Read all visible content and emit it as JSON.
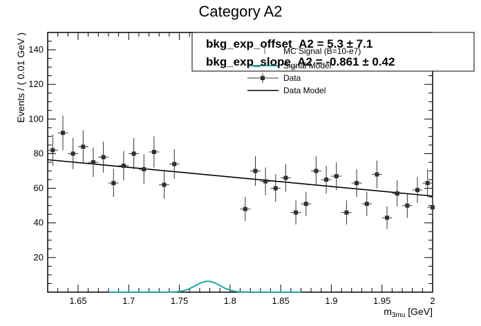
{
  "chart_data": {
    "type": "scatter",
    "title": "Category A2",
    "xlabel": "m",
    "xlabel_sub": "3mu",
    "xlabel_unit": " [GeV]",
    "ylabel": "Events / ( 0.01 GeV )",
    "xlim": [
      1.62,
      2.0
    ],
    "ylim": [
      0,
      150
    ],
    "x_ticks": [
      "1.65",
      "1.7",
      "1.75",
      "1.8",
      "1.85",
      "1.9",
      "1.95",
      "2"
    ],
    "y_ticks": [
      "20",
      "40",
      "60",
      "80",
      "100",
      "120",
      "140"
    ],
    "legend": {
      "placement": "top-right",
      "entries": [
        "MC Signal (B=10-e7)",
        "Signal Model",
        "Data",
        "Data Model"
      ]
    },
    "fit_results": [
      {
        "name": "bkg_exp_offset_A2",
        "text": "bkg_exp_offset_A2 =  5.3 ± 7.1"
      },
      {
        "name": "bkg_exp_slope_A2",
        "text": "bkg_exp_slope_A2 = -0.861 ± 0.42"
      }
    ],
    "bin_half_width": 0.005,
    "series": [
      {
        "name": "Data",
        "points": [
          {
            "x": 1.625,
            "y": 82,
            "err": 9
          },
          {
            "x": 1.635,
            "y": 92,
            "err": 10
          },
          {
            "x": 1.645,
            "y": 80,
            "err": 9
          },
          {
            "x": 1.655,
            "y": 84,
            "err": 9.5
          },
          {
            "x": 1.665,
            "y": 75,
            "err": 8.5
          },
          {
            "x": 1.675,
            "y": 78,
            "err": 9
          },
          {
            "x": 1.685,
            "y": 63,
            "err": 8
          },
          {
            "x": 1.695,
            "y": 73,
            "err": 8.5
          },
          {
            "x": 1.705,
            "y": 80,
            "err": 9
          },
          {
            "x": 1.715,
            "y": 71,
            "err": 8.5
          },
          {
            "x": 1.725,
            "y": 81,
            "err": 9
          },
          {
            "x": 1.735,
            "y": 62,
            "err": 8
          },
          {
            "x": 1.745,
            "y": 74,
            "err": 8.5
          },
          {
            "x": 1.815,
            "y": 48,
            "err": 7
          },
          {
            "x": 1.825,
            "y": 70,
            "err": 8.5
          },
          {
            "x": 1.835,
            "y": 64,
            "err": 8
          },
          {
            "x": 1.845,
            "y": 60,
            "err": 8
          },
          {
            "x": 1.855,
            "y": 66,
            "err": 8
          },
          {
            "x": 1.865,
            "y": 46,
            "err": 7
          },
          {
            "x": 1.875,
            "y": 51,
            "err": 7
          },
          {
            "x": 1.885,
            "y": 70,
            "err": 8.5
          },
          {
            "x": 1.895,
            "y": 65,
            "err": 8
          },
          {
            "x": 1.905,
            "y": 67,
            "err": 8
          },
          {
            "x": 1.915,
            "y": 46,
            "err": 7
          },
          {
            "x": 1.925,
            "y": 63,
            "err": 8
          },
          {
            "x": 1.935,
            "y": 51,
            "err": 7
          },
          {
            "x": 1.945,
            "y": 68,
            "err": 8
          },
          {
            "x": 1.955,
            "y": 43,
            "err": 6.5
          },
          {
            "x": 1.965,
            "y": 57,
            "err": 7.5
          },
          {
            "x": 1.975,
            "y": 50,
            "err": 7
          },
          {
            "x": 1.985,
            "y": 59,
            "err": 7.5
          },
          {
            "x": 1.995,
            "y": 63,
            "err": 8
          },
          {
            "x": 2.0,
            "y": 49,
            "err": 7
          }
        ]
      },
      {
        "name": "Data Model",
        "line": [
          [
            1.62,
            76.5
          ],
          [
            2.0,
            55.5
          ]
        ]
      },
      {
        "name": "Signal Model",
        "gaussian": {
          "mean": 1.778,
          "sigma": 0.012,
          "amplitude": 6.3,
          "xrange": [
            1.68,
            1.87
          ]
        }
      }
    ],
    "colors": {
      "data": "#303030",
      "data_model": "#000000",
      "signal": "#1fa3a3"
    }
  }
}
